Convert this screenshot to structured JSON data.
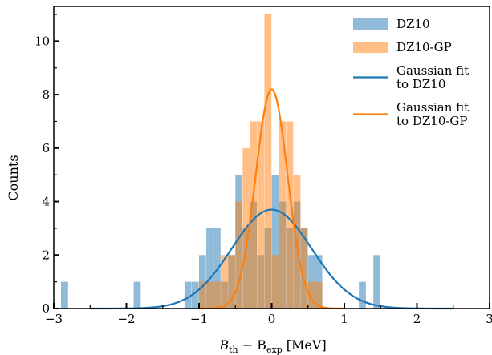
{
  "chart_data": {
    "type": "bar",
    "xlabel_main": "B",
    "xlabel_sub1": "th",
    "xlabel_minus": " − B",
    "xlabel_sub2": "exp",
    "xlabel_unit": " [MeV]",
    "ylabel": "Counts",
    "xlim": [
      -3,
      3
    ],
    "ylim": [
      0,
      11.3
    ],
    "xticks": [
      "−3",
      "−2",
      "−1",
      "0",
      "1",
      "2",
      "3"
    ],
    "xtick_values": [
      -3,
      -2,
      -1,
      0,
      1,
      2,
      3
    ],
    "yticks": [
      "0",
      "2",
      "4",
      "6",
      "8",
      "10"
    ],
    "ytick_values": [
      0,
      2,
      4,
      6,
      8,
      10
    ],
    "bin_width": 0.1,
    "series": [
      {
        "name": "DZ10",
        "color": "#1f77b4",
        "alpha": 0.5,
        "bins": [
          {
            "left": -2.9,
            "count": 1
          },
          {
            "left": -1.9,
            "count": 1
          },
          {
            "left": -1.2,
            "count": 1
          },
          {
            "left": -1.1,
            "count": 1
          },
          {
            "left": -1.0,
            "count": 2
          },
          {
            "left": -0.9,
            "count": 3
          },
          {
            "left": -0.8,
            "count": 3
          },
          {
            "left": -0.7,
            "count": 1
          },
          {
            "left": -0.6,
            "count": 2
          },
          {
            "left": -0.5,
            "count": 5
          },
          {
            "left": -0.4,
            "count": 3
          },
          {
            "left": -0.3,
            "count": 4
          },
          {
            "left": -0.2,
            "count": 2
          },
          {
            "left": -0.1,
            "count": 3
          },
          {
            "left": 0.0,
            "count": 5
          },
          {
            "left": 0.1,
            "count": 4
          },
          {
            "left": 0.2,
            "count": 3
          },
          {
            "left": 0.3,
            "count": 4
          },
          {
            "left": 0.4,
            "count": 3
          },
          {
            "left": 0.5,
            "count": 2
          },
          {
            "left": 0.6,
            "count": 2
          },
          {
            "left": 1.2,
            "count": 1
          },
          {
            "left": 1.4,
            "count": 2
          }
        ]
      },
      {
        "name": "DZ10-GP",
        "color": "#ff7f0e",
        "alpha": 0.5,
        "bins": [
          {
            "left": -1.0,
            "count": 1
          },
          {
            "left": -0.9,
            "count": 1
          },
          {
            "left": -0.8,
            "count": 1
          },
          {
            "left": -0.7,
            "count": 2
          },
          {
            "left": -0.6,
            "count": 2
          },
          {
            "left": -0.5,
            "count": 4
          },
          {
            "left": -0.4,
            "count": 6
          },
          {
            "left": -0.3,
            "count": 7
          },
          {
            "left": -0.2,
            "count": 7
          },
          {
            "left": -0.1,
            "count": 11
          },
          {
            "left": 0.0,
            "count": 2
          },
          {
            "left": 0.1,
            "count": 7
          },
          {
            "left": 0.2,
            "count": 7
          },
          {
            "left": 0.3,
            "count": 5
          },
          {
            "left": 0.4,
            "count": 3
          },
          {
            "left": 0.5,
            "count": 1
          },
          {
            "left": 0.6,
            "count": 1
          }
        ]
      }
    ],
    "fits": [
      {
        "name": "Gaussian fit to DZ10",
        "color": "#1f77b4",
        "amplitude": 3.7,
        "mean": 0.0,
        "sigma": 0.55,
        "x_range": [
          -2.5,
          2.5
        ]
      },
      {
        "name": "Gaussian fit to DZ10-GP",
        "color": "#ff7f0e",
        "amplitude": 8.2,
        "mean": 0.0,
        "sigma": 0.22,
        "x_range": [
          -1.0,
          1.0
        ]
      }
    ],
    "legend": {
      "position": "top-right",
      "entries": [
        {
          "kind": "patch",
          "color": "#1f77b4",
          "lines": [
            "DZ10"
          ]
        },
        {
          "kind": "patch",
          "color": "#ff7f0e",
          "lines": [
            "DZ10-GP"
          ]
        },
        {
          "kind": "line",
          "color": "#1f77b4",
          "lines": [
            "Gaussian fit",
            "to DZ10"
          ]
        },
        {
          "kind": "line",
          "color": "#ff7f0e",
          "lines": [
            "Gaussian fit",
            "to DZ10-GP"
          ]
        }
      ]
    },
    "grid": false
  }
}
